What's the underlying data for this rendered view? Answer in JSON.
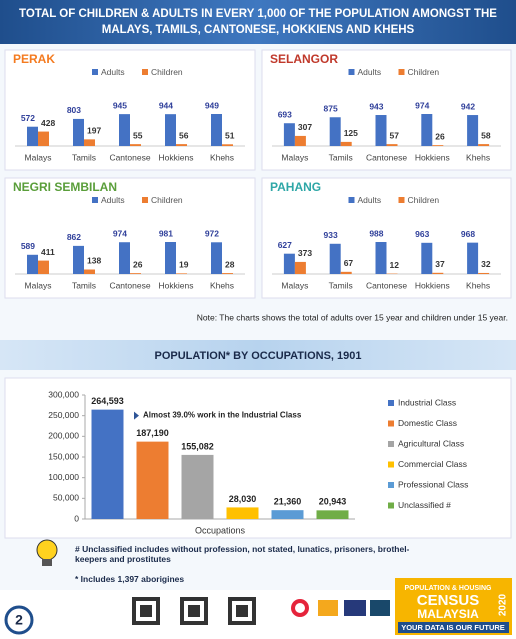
{
  "header": {
    "title_lines": [
      "TOTAL OF CHILDREN & ADULTS IN EVERY 1,000 OF THE POPULATION AMONGST THE",
      "MALAYS, TAMILS, CANTONESE, HOKKIENS AND KHEHS"
    ]
  },
  "chart_data": [
    {
      "type": "bar",
      "title": "PERAK",
      "title_color": "#f47b20",
      "categories": [
        "Malays",
        "Tamils",
        "Cantonese",
        "Hokkiens",
        "Khehs"
      ],
      "series": [
        {
          "name": "Adults",
          "color": "#4472c4",
          "values": [
            572,
            803,
            945,
            944,
            949
          ]
        },
        {
          "name": "Children",
          "color": "#ed7d31",
          "values": [
            428,
            197,
            55,
            56,
            51
          ]
        }
      ]
    },
    {
      "type": "bar",
      "title": "SELANGOR",
      "title_color": "#c0392b",
      "categories": [
        "Malays",
        "Tamils",
        "Cantonese",
        "Hokkiens",
        "Khehs"
      ],
      "series": [
        {
          "name": "Adults",
          "color": "#4472c4",
          "values": [
            693,
            875,
            943,
            974,
            942
          ]
        },
        {
          "name": "Children",
          "color": "#ed7d31",
          "values": [
            307,
            125,
            57,
            26,
            58
          ]
        }
      ]
    },
    {
      "type": "bar",
      "title": "NEGRI SEMBILAN",
      "title_color": "#5a9e3a",
      "categories": [
        "Malays",
        "Tamils",
        "Cantonese",
        "Hokkiens",
        "Khehs"
      ],
      "series": [
        {
          "name": "Adults",
          "color": "#4472c4",
          "values": [
            589,
            862,
            974,
            981,
            972
          ]
        },
        {
          "name": "Children",
          "color": "#ed7d31",
          "values": [
            411,
            138,
            26,
            19,
            28
          ]
        }
      ]
    },
    {
      "type": "bar",
      "title": "PAHANG",
      "title_color": "#2ea7a7",
      "categories": [
        "Malays",
        "Tamils",
        "Cantonese",
        "Hokkiens",
        "Khehs"
      ],
      "series": [
        {
          "name": "Adults",
          "color": "#4472c4",
          "values": [
            627,
            933,
            988,
            963,
            968
          ]
        },
        {
          "name": "Children",
          "color": "#ed7d31",
          "values": [
            373,
            67,
            12,
            37,
            32
          ]
        }
      ]
    },
    {
      "type": "bar",
      "title": "POPULATION* BY OCCUPATIONS, 1901",
      "categories": [
        "Industrial Class",
        "Domestic Class",
        "Agricultural Class",
        "Commercial Class",
        "Professional Class",
        "Unclassified #"
      ],
      "colors": [
        "#4472c4",
        "#ed7d31",
        "#a5a5a5",
        "#ffc000",
        "#5b9bd5",
        "#70ad47"
      ],
      "values": [
        264593,
        187190,
        155082,
        28030,
        21360,
        20943
      ],
      "value_labels": [
        "264,593",
        "187,190",
        "155,082",
        "28,030",
        "21,360",
        "20,943"
      ],
      "ylim": [
        0,
        300000
      ],
      "yticks": [
        0,
        {
          "value": 50000,
          "label": "50,000"
        },
        {
          "value": 100000,
          "label": "100,000"
        },
        {
          "value": 150000,
          "label": "150,000"
        },
        {
          "value": 200000,
          "label": "200,000"
        },
        {
          "value": 250000,
          "label": "250,000"
        },
        {
          "value": 300000,
          "label": "300,000"
        }
      ],
      "xlabel": "Occupations",
      "annotation": "Almost 39.0% work in the Industrial Class",
      "legend": "right"
    }
  ],
  "note": "Note: The charts shows the total of adults over 15 year and children under 15 year.",
  "footnotes": [
    "# Unclassified includes without profession, not stated, lunatics, prisoners, brothel-keepers and prostitutes",
    "* Includes 1,397 aborigines"
  ],
  "footer": {
    "line1": "POPULATION & HOUSING",
    "line2": "CENSUS",
    "line3": "MALAYSIA",
    "year": "2020",
    "slogan": "YOUR DATA IS OUR FUTURE"
  },
  "page_number": "2"
}
